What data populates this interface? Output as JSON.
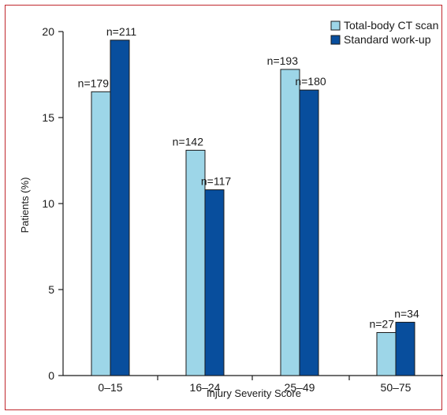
{
  "chart_data": {
    "type": "bar",
    "categories": [
      "0–15",
      "16–24",
      "25–49",
      "50–75"
    ],
    "series": [
      {
        "name": "Total-body CT scan",
        "color": "#9dd6e8",
        "values": [
          16.5,
          13.1,
          17.8,
          2.5
        ],
        "labels": [
          "n=179",
          "n=142",
          "n=193",
          "n=27"
        ]
      },
      {
        "name": "Standard work-up",
        "color": "#084e9d",
        "values": [
          19.5,
          10.8,
          16.6,
          3.1
        ],
        "labels": [
          "n=211",
          "n=117",
          "n=180",
          "n=34"
        ]
      }
    ],
    "xlabel": "Injury Severity Score",
    "ylabel": "Patients (%)",
    "ylim": [
      0,
      20
    ],
    "yticks": [
      0,
      5,
      10,
      15,
      20
    ],
    "grid": false,
    "legend_position": "top-right"
  }
}
